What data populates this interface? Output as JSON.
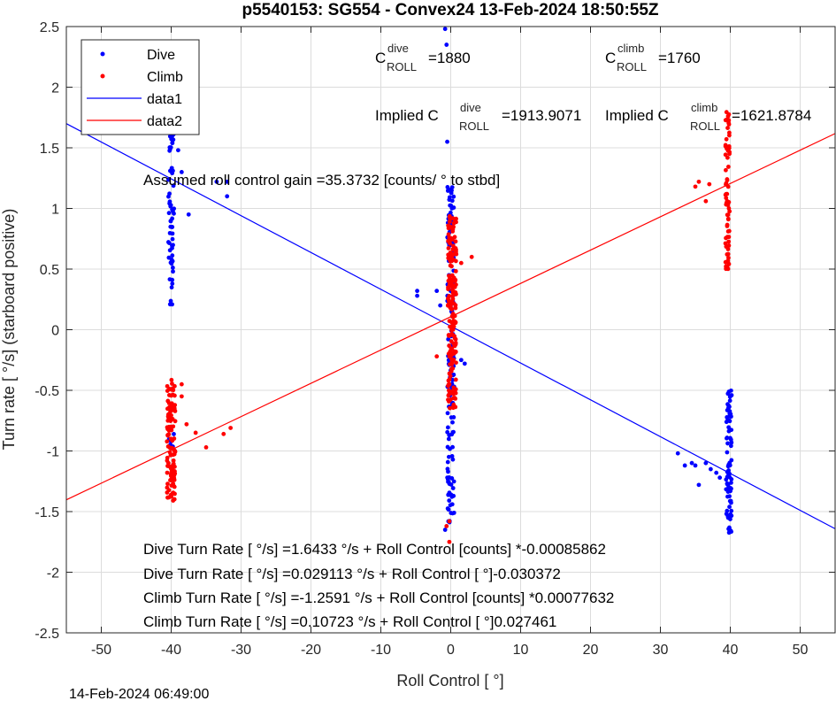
{
  "chart_data": {
    "type": "scatter",
    "title": "p5540153: SG554 - Convex24 13-Feb-2024 18:50:55Z",
    "xlabel": "Roll Control [   °]",
    "ylabel": "Turn rate [   °/s] (starboard positive)",
    "xlim": [
      -55,
      55
    ],
    "ylim": [
      -2.5,
      2.5
    ],
    "xticks": [
      -50,
      -40,
      -30,
      -20,
      -10,
      0,
      10,
      20,
      30,
      40,
      50
    ],
    "yticks": [
      -2.5,
      -2,
      -1.5,
      -1,
      -0.5,
      0,
      0.5,
      1,
      1.5,
      2,
      2.5
    ],
    "grid": true,
    "legend_position": "top-left",
    "legend": [
      "Dive",
      "Climb",
      "data1",
      "data2"
    ],
    "colors": {
      "dive": "#0000ff",
      "climb": "#ff0000"
    },
    "series": [
      {
        "name": "Dive",
        "kind": "points",
        "clusters": [
          {
            "x": -40,
            "x_spread": 0.4,
            "y_min": 0.2,
            "y_max": 1.82,
            "count": 70
          },
          {
            "x": -40,
            "x_spread": 0.4,
            "y_min": -1.05,
            "y_max": -0.78,
            "count": 8
          },
          {
            "x": 0,
            "x_spread": 0.5,
            "y_min": -1.6,
            "y_max": 1.2,
            "count": 150
          },
          {
            "x": 39.8,
            "x_spread": 0.4,
            "y_min": -1.68,
            "y_max": -0.5,
            "count": 80
          }
        ],
        "extra_points": [
          [
            -39,
            1.48
          ],
          [
            -38.5,
            1.3
          ],
          [
            -37.5,
            0.95
          ],
          [
            -33.5,
            1.22
          ],
          [
            -32,
            1.22
          ],
          [
            -32,
            1.1
          ],
          [
            -4.8,
            0.32
          ],
          [
            -4.8,
            0.28
          ],
          [
            -2,
            0.32
          ],
          [
            -1.5,
            0.2
          ],
          [
            -0.8,
            2.48
          ],
          [
            -0.6,
            2.35
          ],
          [
            -0.5,
            1.55
          ],
          [
            -0.8,
            -1.65
          ],
          [
            2,
            -0.28
          ],
          [
            1.5,
            -0.25
          ],
          [
            32.5,
            -1.02
          ],
          [
            33.5,
            -1.12
          ],
          [
            34.5,
            -1.1
          ],
          [
            35,
            -1.12
          ],
          [
            35.5,
            -1.28
          ],
          [
            36.5,
            -1.1
          ],
          [
            37.2,
            -1.15
          ],
          [
            38,
            -1.18
          ],
          [
            38.5,
            -1.22
          ]
        ]
      },
      {
        "name": "Climb",
        "kind": "points",
        "clusters": [
          {
            "x": -40,
            "x_spread": 0.6,
            "y_min": -1.41,
            "y_max": -0.38,
            "count": 110
          },
          {
            "x": 0.2,
            "x_spread": 0.6,
            "y_min": -0.65,
            "y_max": 0.98,
            "count": 180
          },
          {
            "x": 39.6,
            "x_spread": 0.3,
            "y_min": 0.48,
            "y_max": 1.8,
            "count": 70
          }
        ],
        "extra_points": [
          [
            -38.5,
            -0.55
          ],
          [
            -38.5,
            -0.45
          ],
          [
            -37.8,
            -0.78
          ],
          [
            -36.5,
            -0.85
          ],
          [
            -35,
            -0.97
          ],
          [
            -32.5,
            -0.86
          ],
          [
            -31.5,
            -0.81
          ],
          [
            -0.2,
            -1.75
          ],
          [
            -0.2,
            -1.58
          ],
          [
            -0.6,
            -1.62
          ],
          [
            3,
            0.6
          ],
          [
            1.5,
            0.55
          ],
          [
            -2,
            -0.22
          ],
          [
            35,
            1.18
          ],
          [
            35.5,
            1.22
          ],
          [
            36.5,
            1.06
          ],
          [
            37,
            1.2
          ]
        ]
      },
      {
        "name": "data1",
        "kind": "line",
        "intercept": 0.029113,
        "slope": -0.030372
      },
      {
        "name": "data2",
        "kind": "line",
        "intercept": 0.10723,
        "slope": 0.027461
      }
    ],
    "annotations": {
      "c_dive_base": "C",
      "c_dive_sup": "dive",
      "c_dive_sub": "ROLL",
      "c_dive_val": "=1880",
      "c_climb_base": "C",
      "c_climb_sup": "climb",
      "c_climb_sub": "ROLL",
      "c_climb_val": "=1760",
      "implied_dive_pre": "Implied C",
      "implied_dive_sup": "dive",
      "implied_dive_sub": "ROLL",
      "implied_dive_val": "=1913.9071",
      "implied_climb_pre": "Implied C",
      "implied_climb_sup": "climb",
      "implied_climb_sub": "ROLL",
      "implied_climb_val": "=1621.8784",
      "gain": "Assumed roll control gain =35.3732 [counts/            ° to stbd]",
      "fit_lines": [
        "Dive Turn Rate [    °/s] =1.6433     °/s + Roll Control [counts] *-0.00085862",
        "Dive Turn Rate [    °/s] =0.029113     °/s + Roll Control [     °]-0.030372",
        "Climb Turn Rate [    °/s] =-1.2591     °/s + Roll Control [counts] *0.00077632",
        "Climb Turn Rate [    °/s] =0.10723     °/s + Roll Control [     °]0.027461"
      ]
    },
    "footer": "14-Feb-2024 06:49:00"
  }
}
